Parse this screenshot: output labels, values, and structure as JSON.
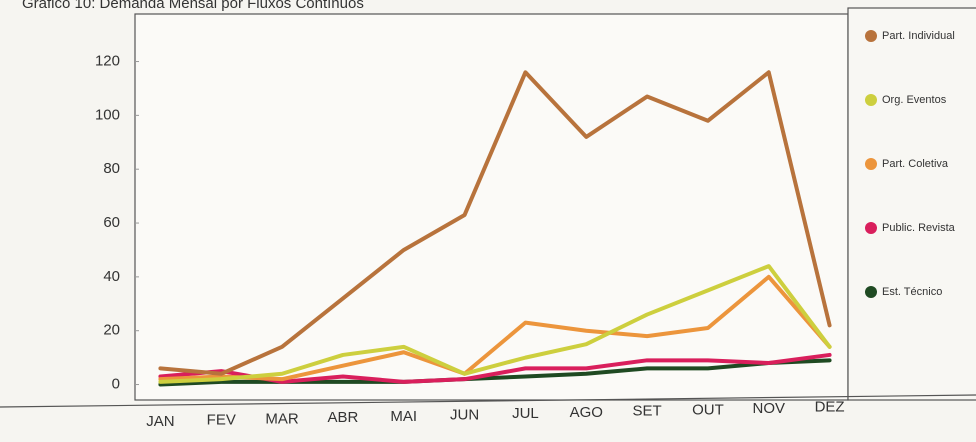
{
  "chart_data": {
    "type": "line",
    "title": "Gráfico 10: Demanda Mensal por Fluxos Contínuos",
    "categories": [
      "JAN",
      "FEV",
      "MAR",
      "ABR",
      "MAI",
      "JUN",
      "JUL",
      "AGO",
      "SET",
      "OUT",
      "NOV",
      "DEZ"
    ],
    "series": [
      {
        "name": "Part. Individual",
        "color": "#b8733c",
        "values": [
          6,
          4,
          14,
          32,
          50,
          63,
          116,
          92,
          107,
          98,
          116,
          22
        ]
      },
      {
        "name": "Org. Eventos",
        "color": "#cdcf3e",
        "values": [
          1,
          2,
          4,
          11,
          14,
          4,
          10,
          15,
          26,
          35,
          44,
          14
        ]
      },
      {
        "name": "Part. Coletiva",
        "color": "#ec953c",
        "values": [
          2,
          3,
          2,
          7,
          12,
          4,
          23,
          20,
          18,
          21,
          40,
          14
        ]
      },
      {
        "name": "Public. Revista",
        "color": "#d91f5c",
        "values": [
          3,
          5,
          1,
          3,
          1,
          2,
          6,
          6,
          9,
          9,
          8,
          11
        ]
      },
      {
        "name": "Est. Técnico",
        "color": "#1f4a22",
        "values": [
          0,
          1,
          1,
          1,
          1,
          2,
          3,
          4,
          6,
          6,
          8,
          9
        ]
      }
    ],
    "ylim": [
      -5,
      128
    ],
    "yticks": [
      0,
      20,
      40,
      60,
      80,
      100,
      120
    ],
    "legend": "right"
  }
}
